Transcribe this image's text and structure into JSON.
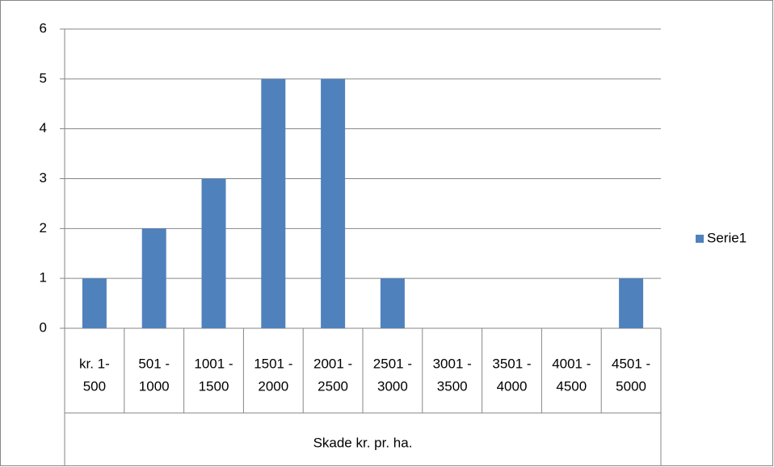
{
  "chart_data": {
    "type": "bar",
    "x_label": "Skade kr. pr. ha.",
    "categories": [
      [
        "kr. 1-",
        "500"
      ],
      [
        "501 -",
        "1000"
      ],
      [
        "1001 -",
        "1500"
      ],
      [
        "1501 -",
        "2000"
      ],
      [
        "2001 -",
        "2500"
      ],
      [
        "2501 -",
        "3000"
      ],
      [
        "3001 -",
        "3500"
      ],
      [
        "3501 -",
        "4000"
      ],
      [
        "4001 -",
        "4500"
      ],
      [
        "4501 -",
        "5000"
      ]
    ],
    "series": [
      {
        "name": "Serie1",
        "color": "#4f81bd",
        "values": [
          1,
          2,
          3,
          5,
          5,
          1,
          0,
          0,
          0,
          1
        ]
      }
    ],
    "ylim": [
      0,
      6
    ],
    "yticks": [
      0,
      1,
      2,
      3,
      4,
      5,
      6
    ],
    "grid": true,
    "legend": "right"
  }
}
